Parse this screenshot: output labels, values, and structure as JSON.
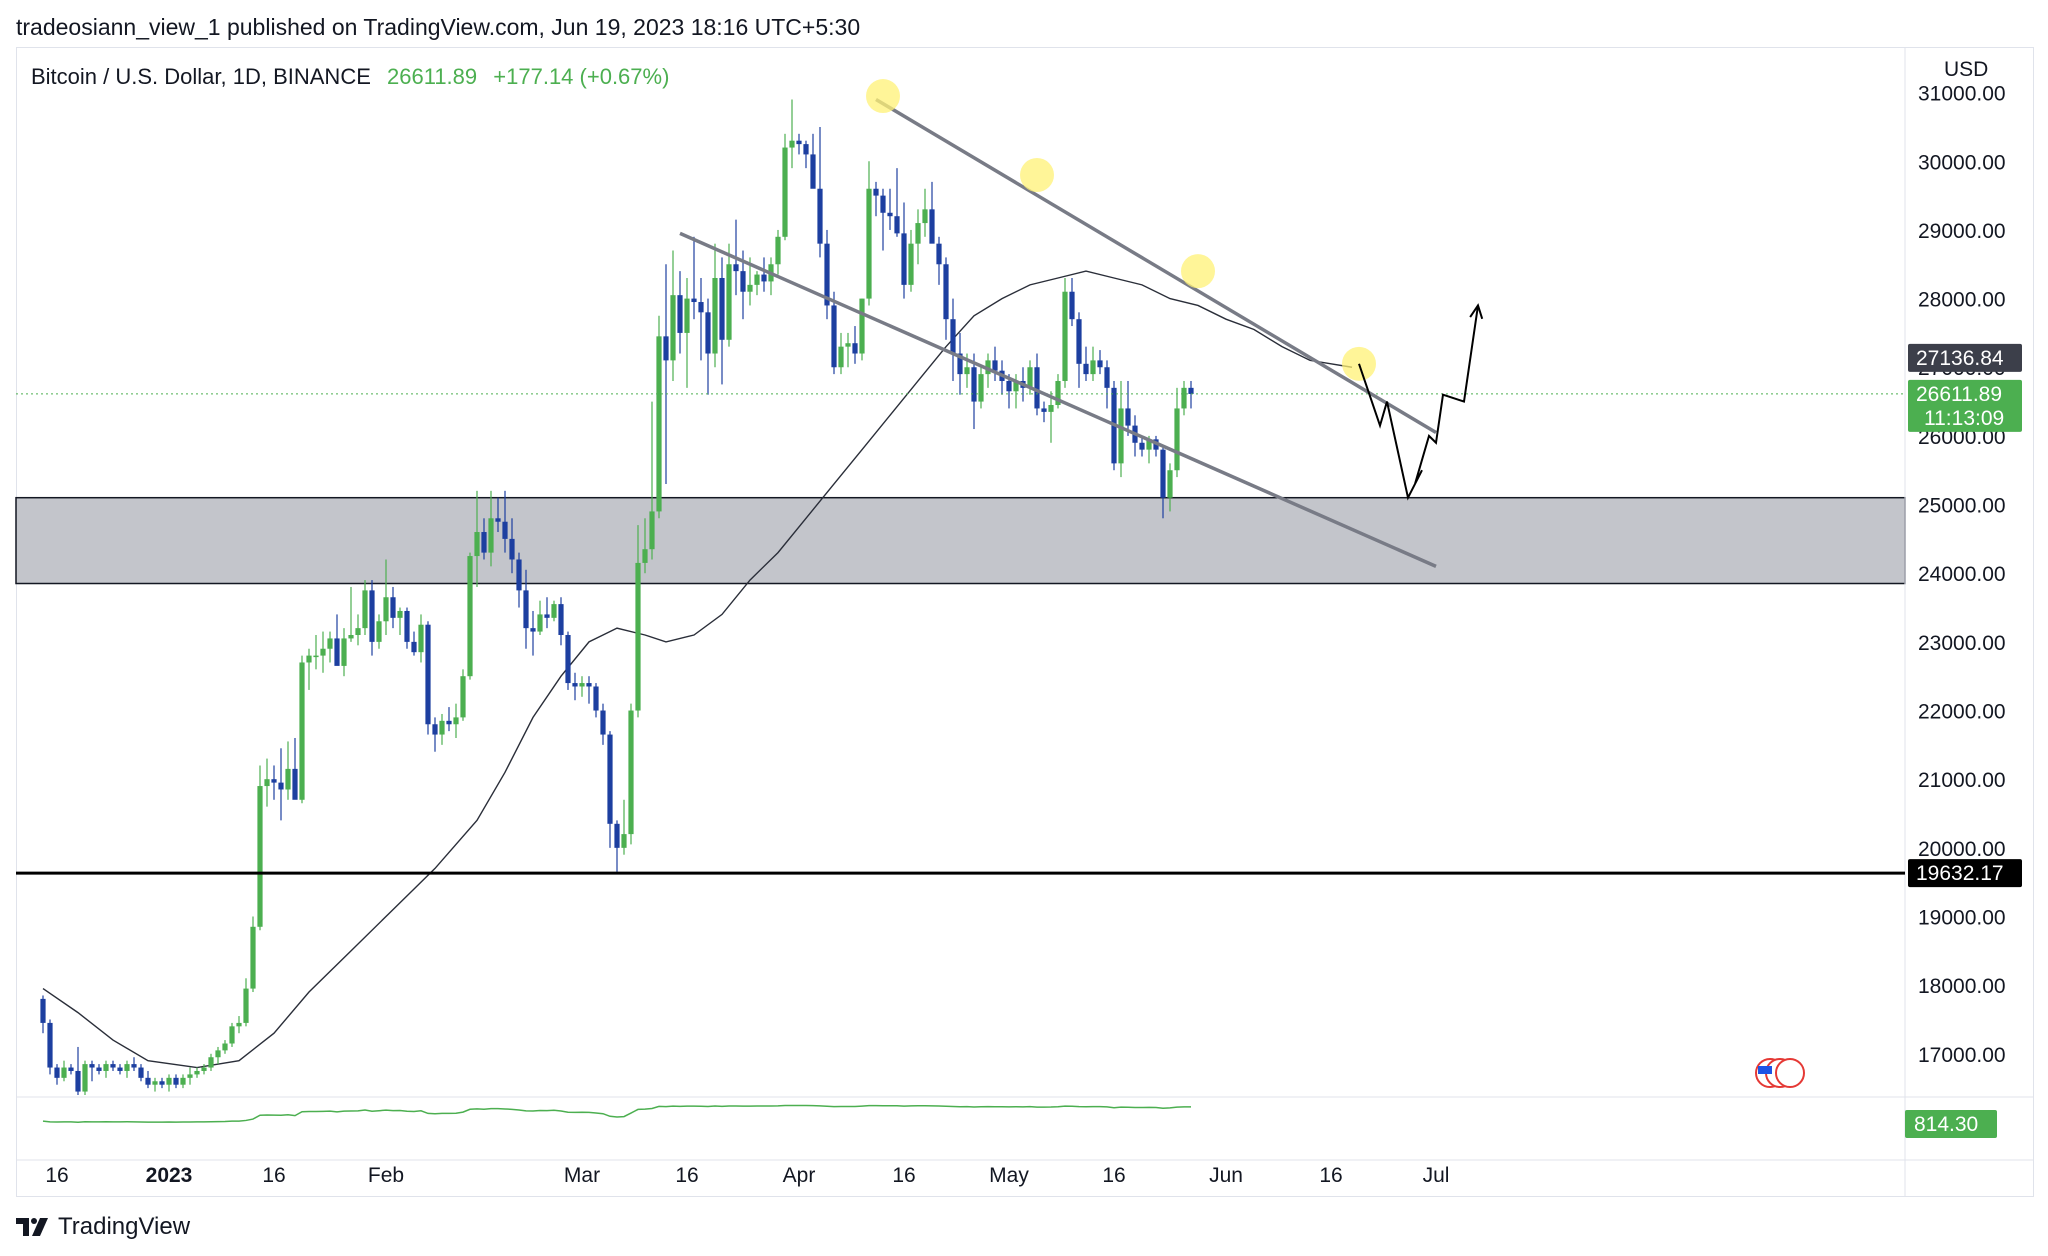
{
  "header": {
    "publisher": "tradeosiann_view_1 published on TradingView.com, Jun 19, 2023 18:16 UTC+5:30"
  },
  "legend": {
    "symbol": "Bitcoin / U.S. Dollar, 1D, BINANCE",
    "price": "26611.89",
    "change": "+177.14 (+0.67%)"
  },
  "chart_data": {
    "type": "candlestick",
    "currency_label": "USD",
    "y_ticks": [
      17000,
      18000,
      19000,
      20000,
      21000,
      22000,
      23000,
      24000,
      25000,
      26000,
      27000,
      28000,
      29000,
      30000,
      31000
    ],
    "ylim": [
      16400,
      31650
    ],
    "x_tick_labels": [
      {
        "date": "2022-12-16",
        "label": "16"
      },
      {
        "date": "2023-01-01",
        "label": "2023"
      },
      {
        "date": "2023-01-16",
        "label": "16"
      },
      {
        "date": "2023-02-01",
        "label": "Feb"
      },
      {
        "date": "2023-03-01",
        "label": "Mar"
      },
      {
        "date": "2023-03-16",
        "label": "16"
      },
      {
        "date": "2023-04-01",
        "label": "Apr"
      },
      {
        "date": "2023-04-16",
        "label": "16"
      },
      {
        "date": "2023-05-01",
        "label": "May"
      },
      {
        "date": "2023-05-16",
        "label": "16"
      },
      {
        "date": "2023-06-01",
        "label": "Jun"
      },
      {
        "date": "2023-06-16",
        "label": "16"
      },
      {
        "date": "2023-07-01",
        "label": "Jul"
      }
    ],
    "start_date": "2022-12-14",
    "end_date": "2023-06-19",
    "candles_ohlc": [
      [
        17800,
        17850,
        17300,
        17450
      ],
      [
        17450,
        17500,
        16700,
        16800
      ],
      [
        16800,
        16850,
        16550,
        16650
      ],
      [
        16650,
        16900,
        16600,
        16800
      ],
      [
        16800,
        16850,
        16700,
        16750
      ],
      [
        16750,
        17100,
        16400,
        16450
      ],
      [
        16450,
        16900,
        16400,
        16850
      ],
      [
        16850,
        16900,
        16600,
        16800
      ],
      [
        16800,
        16850,
        16700,
        16750
      ],
      [
        16750,
        16900,
        16650,
        16850
      ],
      [
        16850,
        16900,
        16750,
        16800
      ],
      [
        16800,
        16850,
        16700,
        16750
      ],
      [
        16750,
        16900,
        16650,
        16850
      ],
      [
        16850,
        16950,
        16750,
        16800
      ],
      [
        16800,
        16850,
        16600,
        16650
      ],
      [
        16650,
        16750,
        16500,
        16550
      ],
      [
        16550,
        16650,
        16450,
        16600
      ],
      [
        16600,
        16650,
        16500,
        16550
      ],
      [
        16550,
        16700,
        16450,
        16650
      ],
      [
        16650,
        16700,
        16500,
        16550
      ],
      [
        16550,
        16700,
        16500,
        16650
      ],
      [
        16650,
        16800,
        16550,
        16700
      ],
      [
        16700,
        16800,
        16650,
        16750
      ],
      [
        16750,
        16850,
        16700,
        16800
      ],
      [
        16800,
        17000,
        16750,
        16950
      ],
      [
        16950,
        17100,
        16850,
        17050
      ],
      [
        17050,
        17200,
        17000,
        17150
      ],
      [
        17150,
        17450,
        17100,
        17400
      ],
      [
        17400,
        17550,
        17300,
        17450
      ],
      [
        17450,
        18100,
        17400,
        17950
      ],
      [
        17950,
        19000,
        17900,
        18850
      ],
      [
        18850,
        21200,
        18800,
        20900
      ],
      [
        20900,
        21300,
        20600,
        21000
      ],
      [
        21000,
        21200,
        20700,
        20950
      ],
      [
        20950,
        21450,
        20400,
        20850
      ],
      [
        20850,
        21550,
        20700,
        21150
      ],
      [
        21150,
        21600,
        20800,
        20700
      ],
      [
        20700,
        22800,
        20650,
        22700
      ],
      [
        22700,
        22900,
        22300,
        22800
      ],
      [
        22800,
        23100,
        22600,
        22800
      ],
      [
        22800,
        23150,
        22550,
        22900
      ],
      [
        22900,
        23150,
        22700,
        23050
      ],
      [
        23050,
        23400,
        22700,
        22650
      ],
      [
        22650,
        23200,
        22500,
        23050
      ],
      [
        23050,
        23800,
        23000,
        23100
      ],
      [
        23100,
        23400,
        22950,
        23200
      ],
      [
        23200,
        23900,
        23100,
        23750
      ],
      [
        23750,
        23900,
        22800,
        23000
      ],
      [
        23000,
        23400,
        22900,
        23300
      ],
      [
        23300,
        24200,
        23100,
        23650
      ],
      [
        23650,
        23800,
        23200,
        23350
      ],
      [
        23350,
        23500,
        23100,
        23450
      ],
      [
        23450,
        23500,
        22900,
        23000
      ],
      [
        23000,
        23150,
        22800,
        22850
      ],
      [
        22850,
        23400,
        22700,
        23250
      ],
      [
        23250,
        23300,
        21650,
        21800
      ],
      [
        21800,
        21900,
        21400,
        21650
      ],
      [
        21650,
        21950,
        21500,
        21850
      ],
      [
        21850,
        22050,
        21700,
        21800
      ],
      [
        21800,
        22100,
        21600,
        21900
      ],
      [
        21900,
        22600,
        21850,
        22500
      ],
      [
        22500,
        24300,
        22450,
        24250
      ],
      [
        24250,
        25200,
        23800,
        24600
      ],
      [
        24600,
        24800,
        24200,
        24300
      ],
      [
        24300,
        25200,
        24100,
        24800
      ],
      [
        24800,
        25100,
        24600,
        24750
      ],
      [
        24750,
        25200,
        24300,
        24500
      ],
      [
        24500,
        24800,
        24000,
        24200
      ],
      [
        24200,
        24300,
        23500,
        23750
      ],
      [
        23750,
        24050,
        22900,
        23200
      ],
      [
        23200,
        23450,
        22800,
        23150
      ],
      [
        23150,
        23600,
        23100,
        23400
      ],
      [
        23400,
        23650,
        23200,
        23350
      ],
      [
        23350,
        23600,
        23300,
        23550
      ],
      [
        23550,
        23650,
        22950,
        23100
      ],
      [
        23100,
        23150,
        22300,
        22400
      ],
      [
        22400,
        22550,
        22150,
        22350
      ],
      [
        22350,
        22500,
        22200,
        22400
      ],
      [
        22400,
        22500,
        22100,
        22350
      ],
      [
        22350,
        22400,
        21900,
        22000
      ],
      [
        22000,
        22100,
        21500,
        21650
      ],
      [
        21650,
        21700,
        20000,
        20350
      ],
      [
        20350,
        20400,
        19650,
        20000
      ],
      [
        20000,
        20700,
        19900,
        20200
      ],
      [
        20200,
        22100,
        20050,
        22000
      ],
      [
        22000,
        24700,
        21900,
        24150
      ],
      [
        24150,
        24800,
        24000,
        24350
      ],
      [
        24350,
        26500,
        24200,
        24900
      ],
      [
        24900,
        27750,
        24800,
        27450
      ],
      [
        27450,
        28500,
        25300,
        27100
      ],
      [
        27100,
        28700,
        26800,
        28050
      ],
      [
        28050,
        28400,
        27200,
        27500
      ],
      [
        27500,
        28300,
        26700,
        28000
      ],
      [
        28000,
        28900,
        27700,
        27950
      ],
      [
        27950,
        28300,
        27100,
        27800
      ],
      [
        27800,
        28000,
        26600,
        27200
      ],
      [
        27200,
        28800,
        27000,
        28300
      ],
      [
        28300,
        28600,
        26750,
        27400
      ],
      [
        27400,
        28800,
        27300,
        28500
      ],
      [
        28500,
        29150,
        28050,
        28400
      ],
      [
        28400,
        28700,
        27700,
        28100
      ],
      [
        28100,
        28600,
        27900,
        28200
      ],
      [
        28200,
        28400,
        28050,
        28350
      ],
      [
        28350,
        28600,
        28100,
        28250
      ],
      [
        28250,
        28600,
        28050,
        28500
      ],
      [
        28500,
        29000,
        28350,
        28900
      ],
      [
        28900,
        30400,
        28850,
        30200
      ],
      [
        30200,
        30900,
        29900,
        30300
      ],
      [
        30300,
        30400,
        30100,
        30250
      ],
      [
        30250,
        30300,
        29900,
        30100
      ],
      [
        30100,
        30400,
        29800,
        29600
      ],
      [
        29600,
        30500,
        28600,
        28800
      ],
      [
        28800,
        29000,
        27700,
        27900
      ],
      [
        27900,
        28100,
        26900,
        27000
      ],
      [
        27000,
        27500,
        26900,
        27300
      ],
      [
        27300,
        27500,
        27000,
        27350
      ],
      [
        27350,
        27600,
        27050,
        27200
      ],
      [
        27200,
        28000,
        27100,
        28000
      ],
      [
        28000,
        30000,
        27900,
        29600
      ],
      [
        29600,
        29700,
        29200,
        29500
      ],
      [
        29500,
        29600,
        28700,
        29250
      ],
      [
        29250,
        29600,
        29000,
        29200
      ],
      [
        29200,
        29900,
        28900,
        28950
      ],
      [
        28950,
        29400,
        28000,
        28200
      ],
      [
        28200,
        29000,
        28100,
        28800
      ],
      [
        28800,
        29300,
        28500,
        29100
      ],
      [
        29100,
        29600,
        28900,
        29300
      ],
      [
        29300,
        29700,
        28900,
        28800
      ],
      [
        28800,
        28900,
        28200,
        28500
      ],
      [
        28500,
        28600,
        27400,
        27700
      ],
      [
        27700,
        28000,
        26800,
        27200
      ],
      [
        27200,
        27500,
        26600,
        26900
      ],
      [
        26900,
        27200,
        26700,
        27000
      ],
      [
        27000,
        27200,
        26100,
        26500
      ],
      [
        26500,
        27000,
        26400,
        26900
      ],
      [
        26900,
        27200,
        26700,
        27100
      ],
      [
        27100,
        27300,
        26800,
        26950
      ],
      [
        26950,
        27100,
        26600,
        26800
      ],
      [
        26800,
        26900,
        26400,
        26650
      ],
      [
        26650,
        26900,
        26400,
        26800
      ],
      [
        26800,
        27000,
        26500,
        26700
      ],
      [
        26700,
        27100,
        26600,
        27000
      ],
      [
        27000,
        27200,
        26300,
        26400
      ],
      [
        26400,
        26500,
        26200,
        26350
      ],
      [
        26350,
        26650,
        25900,
        26450
      ],
      [
        26450,
        26900,
        26400,
        26800
      ],
      [
        26800,
        28300,
        26700,
        28100
      ],
      [
        28100,
        28300,
        27600,
        27700
      ],
      [
        27700,
        27800,
        26700,
        27050
      ],
      [
        27050,
        27300,
        26800,
        26900
      ],
      [
        26900,
        27300,
        26800,
        27100
      ],
      [
        27100,
        27250,
        26900,
        27000
      ],
      [
        27000,
        27100,
        26400,
        26700
      ],
      [
        26700,
        26800,
        25500,
        25600
      ],
      [
        25600,
        26800,
        25400,
        26400
      ],
      [
        26400,
        26800,
        26000,
        26150
      ],
      [
        26150,
        26300,
        25700,
        25900
      ],
      [
        25900,
        26000,
        25700,
        25800
      ],
      [
        25800,
        26000,
        25600,
        25950
      ],
      [
        25950,
        26000,
        25700,
        25800
      ],
      [
        25800,
        25850,
        24800,
        25100
      ],
      [
        25100,
        25600,
        24900,
        25500
      ],
      [
        25500,
        26700,
        25400,
        26400
      ],
      [
        26400,
        26800,
        26300,
        26700
      ],
      [
        26700,
        26800,
        26400,
        26611
      ]
    ],
    "ma_line": [
      [
        0,
        17950
      ],
      [
        5,
        17600
      ],
      [
        10,
        17200
      ],
      [
        15,
        16900
      ],
      [
        22,
        16800
      ],
      [
        28,
        16900
      ],
      [
        33,
        17300
      ],
      [
        38,
        17900
      ],
      [
        44,
        18500
      ],
      [
        50,
        19100
      ],
      [
        56,
        19700
      ],
      [
        62,
        20400
      ],
      [
        66,
        21100
      ],
      [
        70,
        21900
      ],
      [
        74,
        22500
      ],
      [
        78,
        23000
      ],
      [
        82,
        23200
      ],
      [
        86,
        23100
      ],
      [
        89,
        23000
      ],
      [
        93,
        23100
      ],
      [
        97,
        23400
      ],
      [
        101,
        23900
      ],
      [
        105,
        24300
      ],
      [
        109,
        24800
      ],
      [
        113,
        25300
      ],
      [
        117,
        25800
      ],
      [
        121,
        26300
      ],
      [
        125,
        26800
      ],
      [
        129,
        27300
      ],
      [
        133,
        27750
      ],
      [
        137,
        28000
      ],
      [
        141,
        28200
      ],
      [
        145,
        28300
      ],
      [
        149,
        28400
      ],
      [
        153,
        28300
      ],
      [
        157,
        28200
      ],
      [
        161,
        28000
      ],
      [
        165,
        27900
      ],
      [
        169,
        27700
      ],
      [
        173,
        27550
      ],
      [
        177,
        27300
      ],
      [
        181,
        27100
      ],
      [
        187,
        27000
      ]
    ],
    "moving_average_value": "27136.84",
    "last_price": "26611.89",
    "countdown": "11:13:09",
    "support_level": "19632.17",
    "zone": [
      23850,
      25100
    ],
    "trendline_upper": [
      [
        119,
        30900
      ],
      [
        199,
        26050
      ]
    ],
    "trendline_lower": [
      [
        91,
        28950
      ],
      [
        199,
        24100
      ]
    ],
    "highlight_points": [
      [
        120,
        30950
      ],
      [
        142,
        29800
      ],
      [
        165,
        28400
      ],
      [
        188,
        27050
      ]
    ],
    "projection_path": [
      [
        188,
        27050
      ],
      [
        191,
        26150
      ],
      [
        192,
        26500
      ],
      [
        195,
        25100
      ],
      [
        197,
        25500
      ],
      [
        196,
        25300
      ],
      [
        198,
        26000
      ],
      [
        199,
        25900
      ],
      [
        200,
        26600
      ],
      [
        203,
        26500
      ],
      [
        205,
        27900
      ]
    ],
    "volume_value": "814.30"
  }
}
